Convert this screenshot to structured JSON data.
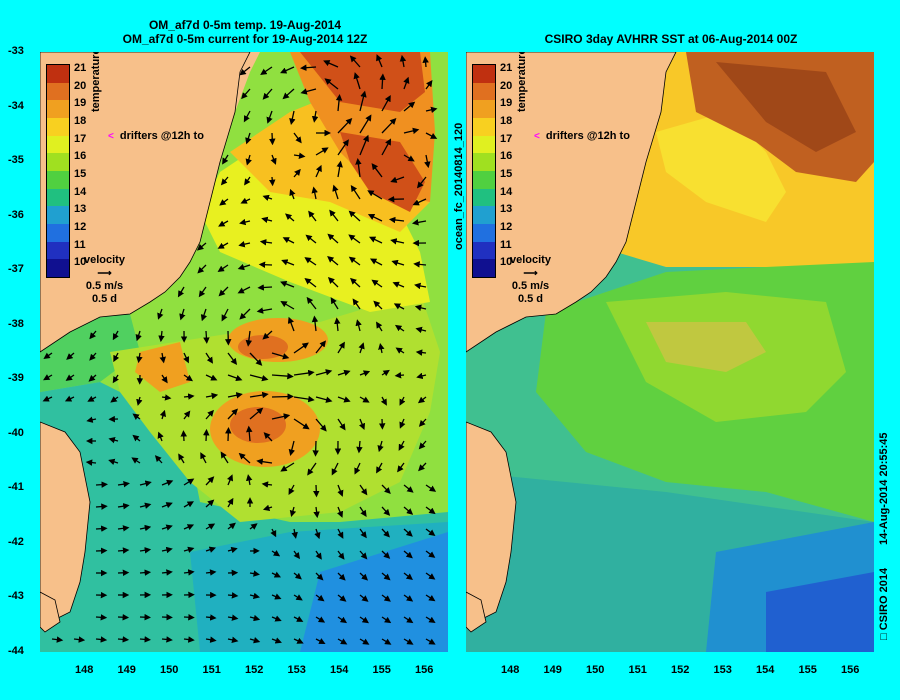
{
  "left_panel": {
    "title_line1": "OM_af7d 0-5m temp. 19-Aug-2014",
    "title_line2": "OM_af7d 0-5m current for 19-Aug-2014 12Z"
  },
  "right_panel": {
    "title": "CSIRO 3day AVHRR SST at 06-Aug-2014 00Z"
  },
  "y_ticks": [
    "-33",
    "-34",
    "-35",
    "-36",
    "-37",
    "-38",
    "-39",
    "-40",
    "-41",
    "-42",
    "-43",
    "-44"
  ],
  "x_ticks": [
    "148",
    "149",
    "150",
    "151",
    "152",
    "153",
    "154",
    "155",
    "156"
  ],
  "legend": {
    "label": "temperature (°C)",
    "values": [
      "21",
      "20",
      "19",
      "18",
      "17",
      "16",
      "15",
      "14",
      "13",
      "12",
      "11",
      "10"
    ],
    "colors": [
      "#c03010",
      "#e07020",
      "#f0a020",
      "#f8d020",
      "#e0f020",
      "#a0e020",
      "#50d040",
      "#20c080",
      "#20a0d0",
      "#2070e0",
      "#2030c0",
      "#101090"
    ]
  },
  "drifters_label": "drifters @12h to",
  "velocity": {
    "label": "velocity",
    "speed": "0.5 m/s",
    "duration": "0.5 d"
  },
  "forecast_id": "ocean_fc_20140814_120",
  "copyright": "CSIRO 2014",
  "timestamp": "14-Aug-2014 20:55:45",
  "colors": {
    "background": "#00ffff",
    "land": "#f7c08a",
    "drifter_marker": "#ff00ff"
  }
}
